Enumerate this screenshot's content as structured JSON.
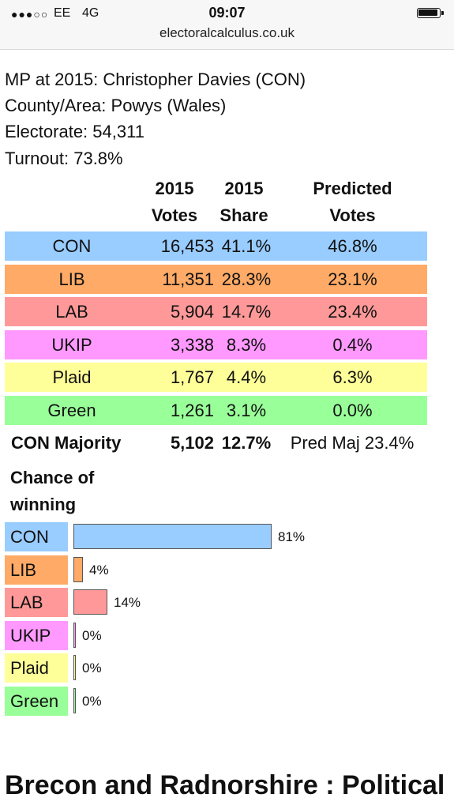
{
  "status_bar": {
    "signal": "●●●○○",
    "carrier": "EE",
    "network": "4G",
    "time": "09:07",
    "url": "electoralcalculus.co.uk"
  },
  "info": {
    "mp": "MP at 2015: Christopher Davies  (CON)",
    "county": "County/Area: Powys (Wales)",
    "electorate": "Electorate: 54,311",
    "turnout": "Turnout: 73.8%"
  },
  "table": {
    "headers": {
      "votes_line1": "2015",
      "votes_line2": "Votes",
      "share_line1": "2015",
      "share_line2": "Share",
      "pred_line1": "Predicted",
      "pred_line2": "Votes"
    },
    "rows": [
      {
        "party": "CON",
        "votes": "16,453",
        "share": "41.1%",
        "predicted": "46.8%",
        "color": "#99ccff"
      },
      {
        "party": "LIB",
        "votes": "11,351",
        "share": "28.3%",
        "predicted": "23.1%",
        "color": "#ffaa66"
      },
      {
        "party": "LAB",
        "votes": "5,904",
        "share": "14.7%",
        "predicted": "23.4%",
        "color": "#ff9999"
      },
      {
        "party": "UKIP",
        "votes": "3,338",
        "share": "8.3%",
        "predicted": "0.4%",
        "color": "#ff99ff"
      },
      {
        "party": "Plaid",
        "votes": "1,767",
        "share": "4.4%",
        "predicted": "6.3%",
        "color": "#ffff99"
      },
      {
        "party": "Green",
        "votes": "1,261",
        "share": "3.1%",
        "predicted": "0.0%",
        "color": "#99ff99"
      }
    ],
    "majority": {
      "label": "CON Majority",
      "votes": "5,102",
      "share": "12.7%",
      "predicted": "Pred Maj 23.4%"
    }
  },
  "chance": {
    "title_line1": "Chance of",
    "title_line2": "winning",
    "rows": [
      {
        "party": "CON",
        "value": 81,
        "label": "81%",
        "color": "#99ccff"
      },
      {
        "party": "LIB",
        "value": 4,
        "label": "4%",
        "color": "#ffaa66"
      },
      {
        "party": "LAB",
        "value": 14,
        "label": "14%",
        "color": "#ff9999"
      },
      {
        "party": "UKIP",
        "value": 0,
        "label": "0%",
        "color": "#ff99ff"
      },
      {
        "party": "Plaid",
        "value": 0,
        "label": "0%",
        "color": "#ffff99"
      },
      {
        "party": "Green",
        "value": 0,
        "label": "0%",
        "color": "#99ff99"
      }
    ]
  },
  "section": {
    "title": "Brecon and Radnorshire : Political and Demographic"
  }
}
